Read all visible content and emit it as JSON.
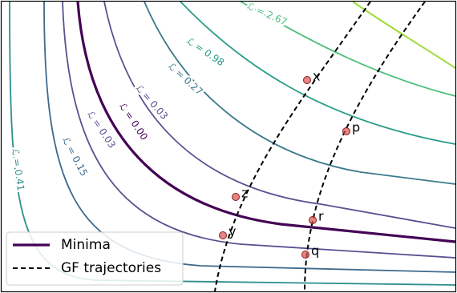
{
  "chart_data": {
    "type": "contour",
    "contours": [
      {
        "level": 0.41,
        "label": "ℒ = 0.41",
        "color": "#2e8f8c"
      },
      {
        "level": 0.15,
        "label": "ℒ = 0.15",
        "color": "#3e6a8d"
      },
      {
        "level": 0.03,
        "label": "ℒ = 0.03",
        "color": "#5b4f90"
      },
      {
        "level": 0.0,
        "label": "ℒ = 0.00",
        "color": "#440154"
      },
      {
        "level": 0.03,
        "label": "ℒ = 0.03",
        "color": "#5b4f90"
      },
      {
        "level": 0.27,
        "label": "ℒ = 0.27",
        "color": "#3b7a8c"
      },
      {
        "level": 0.98,
        "label": "ℒ = 0.98",
        "color": "#2a9c89"
      },
      {
        "level": 2.67,
        "label": "ℒ = 2.67",
        "color": "#4cc07a"
      }
    ],
    "points": [
      "x",
      "p",
      "z",
      "r",
      "y",
      "q"
    ],
    "point_color": "#d9534f",
    "legend": [
      {
        "name": "Minima",
        "color": "#440154",
        "style": "solid"
      },
      {
        "name": "GF trajectories",
        "color": "#000000",
        "style": "dashed"
      }
    ]
  }
}
